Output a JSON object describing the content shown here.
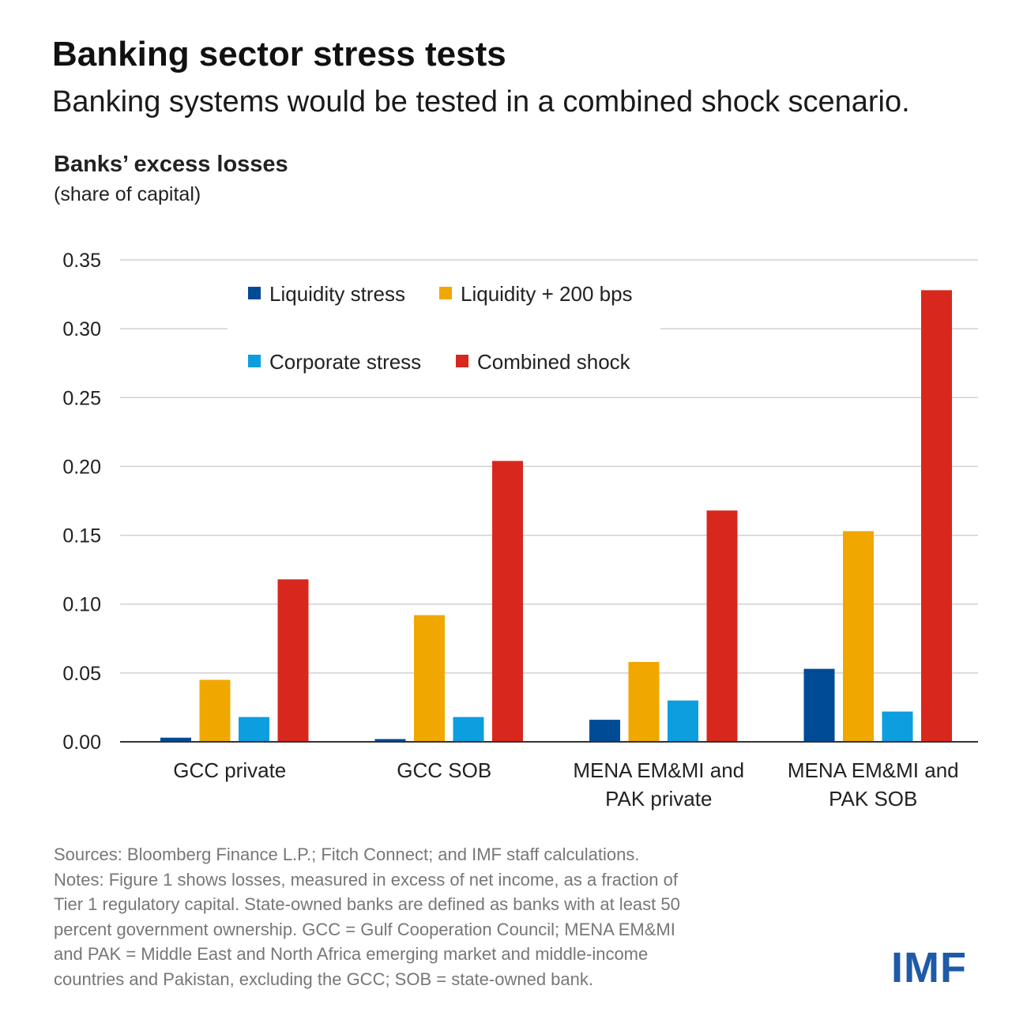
{
  "title": "Banking sector stress tests",
  "subtitle": "Banking systems would be tested in a combined shock scenario.",
  "chart_data": {
    "type": "bar",
    "ylabel": "Banks’ excess losses",
    "yunit": "(share of capital)",
    "xlabel": "",
    "ylim": [
      0,
      0.35
    ],
    "yticks": [
      "0.00",
      "0.05",
      "0.10",
      "0.15",
      "0.20",
      "0.25",
      "0.30",
      "0.35"
    ],
    "grid": true,
    "legend_position": "top",
    "categories": [
      [
        "GCC private"
      ],
      [
        "GCC SOB"
      ],
      [
        "MENA EM&MI and",
        "PAK private"
      ],
      [
        "MENA EM&MI and",
        "PAK SOB"
      ]
    ],
    "series": [
      {
        "name": "Liquidity stress",
        "color": "#004b96",
        "values": [
          0.003,
          0.002,
          0.016,
          0.053
        ]
      },
      {
        "name": "Liquidity + 200 bps",
        "color": "#f0a800",
        "values": [
          0.045,
          0.092,
          0.058,
          0.153
        ]
      },
      {
        "name": "Corporate stress",
        "color": "#0d9ee0",
        "values": [
          0.018,
          0.018,
          0.03,
          0.022
        ]
      },
      {
        "name": "Combined shock",
        "color": "#d8281e",
        "values": [
          0.118,
          0.204,
          0.168,
          0.328
        ]
      }
    ]
  },
  "notes": {
    "lines": [
      "Sources:  Bloomberg Finance L.P.; Fitch Connect; and IMF staff calculations.",
      "Notes: Figure 1 shows losses, measured in excess of net income, as a fraction of",
      "Tier 1 regulatory capital. State-owned banks are defined as banks with at least 50",
      "percent government ownership.  GCC = Gulf Cooperation Council; MENA EM&MI",
      "and PAK = Middle East and North Africa emerging market and middle-income",
      "countries and Pakistan, excluding the GCC; SOB = state-owned bank."
    ]
  },
  "logo": {
    "text": "IMF"
  }
}
